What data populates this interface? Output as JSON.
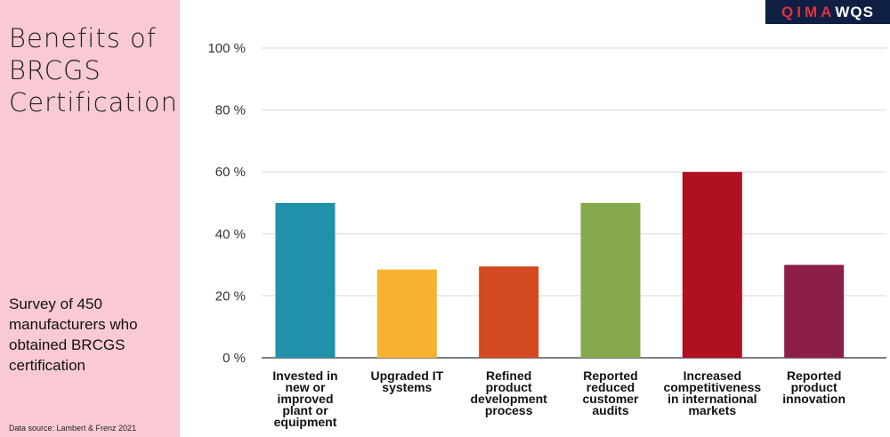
{
  "sidebar": {
    "title": "Benefits of\nBRCGS\nCertification",
    "subtitle": "Survey of 450\nmanufacturers who\nobtained BRCGS\ncertification",
    "source": "Data source: Lambert & Frenz 2021"
  },
  "logo": {
    "part1": "QIMA",
    "part2": "WQS",
    "colors": {
      "background": "#0f2044",
      "accent": "#e0313d"
    }
  },
  "chart_data": {
    "type": "bar",
    "categories": [
      "Invested in new or improved plant or equipment",
      "Upgraded IT systems",
      "Refined product development process",
      "Reported reduced customer audits",
      "Increased competitiveness in international markets",
      "Reported product innovation"
    ],
    "category_lines": [
      [
        "Invested in",
        "new or",
        "improved",
        "plant or",
        "equipment"
      ],
      [
        "Upgraded IT",
        "systems"
      ],
      [
        "Refined",
        "product",
        "development",
        "process"
      ],
      [
        "Reported",
        "reduced",
        "customer",
        "audits"
      ],
      [
        "Increased",
        "competitiveness",
        "in international",
        "markets"
      ],
      [
        "Reported",
        "product",
        "innovation"
      ]
    ],
    "values": [
      50,
      28.5,
      29.5,
      50,
      60,
      30
    ],
    "colors": [
      "#2090ab",
      "#f7b231",
      "#d44a22",
      "#86aa4d",
      "#b0101f",
      "#8c1f48"
    ],
    "yticks": [
      "0 %",
      "20 %",
      "40 %",
      "60 %",
      "80 %",
      "100 %"
    ],
    "ylim": [
      0,
      100
    ],
    "grid": true
  }
}
